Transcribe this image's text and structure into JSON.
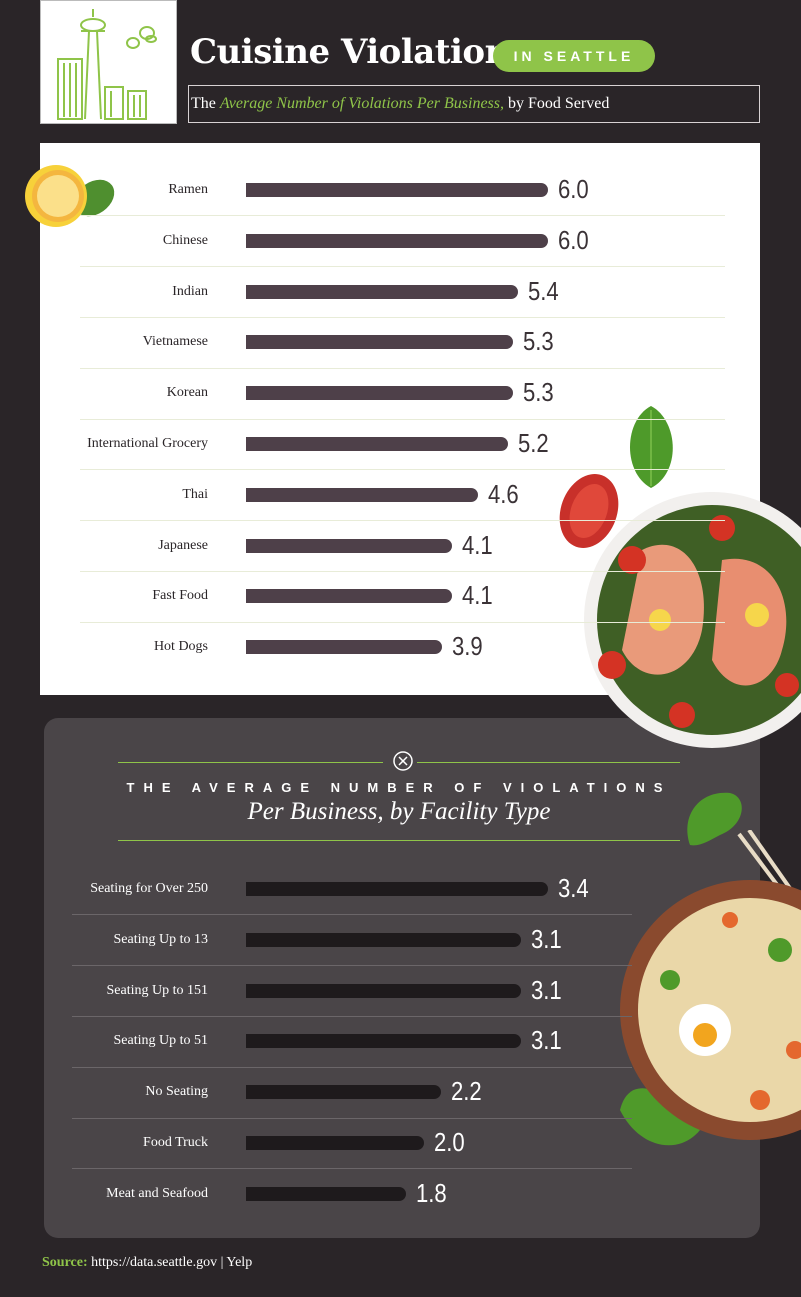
{
  "header": {
    "title": "Cuisine Violations",
    "pill": "IN SEATTLE",
    "subtitle_pre": "The",
    "subtitle_em": "Average Number of Violations Per Business,",
    "subtitle_post": "by Food Served"
  },
  "section2": {
    "caps": "THE AVERAGE NUMBER OF VIOLATIONS",
    "italic": "Per Business, by Facility Type"
  },
  "source": {
    "label": "Source:",
    "text": "https://data.seattle.gov | Yelp"
  },
  "colors": {
    "background": "#2a2528",
    "accent_green": "#8fc449",
    "bar_food": "#4e4049",
    "bar_facility": "#1e1a1c",
    "panel_white": "#ffffff",
    "panel_dark": "#4a4548"
  },
  "chart_data": [
    {
      "type": "bar",
      "orientation": "horizontal",
      "title": "The Average Number of Violations Per Business, by Food Served",
      "categories": [
        "Ramen",
        "Chinese",
        "Indian",
        "Vietnamese",
        "Korean",
        "International Grocery",
        "Thai",
        "Japanese",
        "Fast Food",
        "Hot Dogs"
      ],
      "values": [
        6.0,
        6.0,
        5.4,
        5.3,
        5.3,
        5.2,
        4.6,
        4.1,
        4.1,
        3.9
      ],
      "value_labels": [
        "6.0",
        "6.0",
        "5.4",
        "5.3",
        "5.3",
        "5.2",
        "4.6",
        "4.1",
        "4.1",
        "3.9"
      ],
      "xlim": [
        0,
        6
      ]
    },
    {
      "type": "bar",
      "orientation": "horizontal",
      "title": "THE AVERAGE NUMBER OF VIOLATIONS Per Business, by Facility Type",
      "categories": [
        "Seating for Over 250",
        "Seating Up to 13",
        "Seating Up to 151",
        "Seating Up to 51",
        "No Seating",
        "Food Truck",
        "Meat and Seafood"
      ],
      "values": [
        3.4,
        3.1,
        3.1,
        3.1,
        2.2,
        2.0,
        1.8
      ],
      "value_labels": [
        "3.4",
        "3.1",
        "3.1",
        "3.1",
        "2.2",
        "2.0",
        "1.8"
      ],
      "xlim": [
        0,
        3.4
      ]
    }
  ]
}
